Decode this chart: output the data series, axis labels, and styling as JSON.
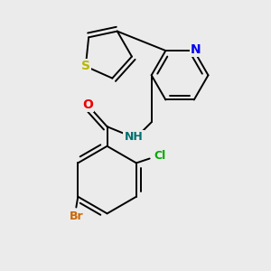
{
  "background_color": "#ebebeb",
  "atom_colors": {
    "S": "#b8b800",
    "N_pyridine": "#0000ee",
    "O": "#ee0000",
    "N_amide": "#007070",
    "Cl": "#00aa00",
    "Br": "#cc6600",
    "C": "#000000"
  },
  "bond_color": "#000000",
  "bond_width": 1.4,
  "font_size": 9
}
